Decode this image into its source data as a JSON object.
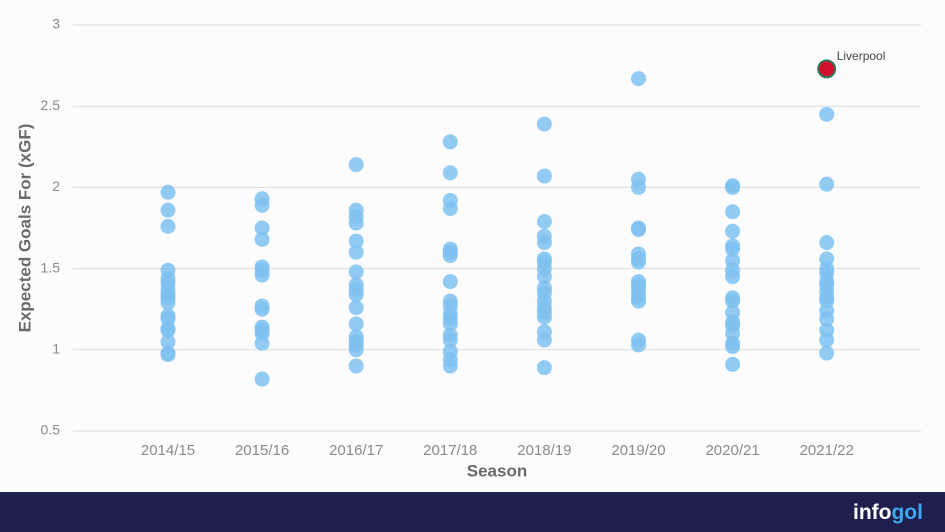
{
  "chart_data": {
    "type": "strip",
    "x_label": "Season",
    "y_label": "Expected Goals For (xGF)",
    "categories": [
      "2014/15",
      "2015/16",
      "2016/17",
      "2017/18",
      "2018/19",
      "2019/20",
      "2020/21",
      "2021/22"
    ],
    "values": [
      [
        1.97,
        1.86,
        1.76,
        1.49,
        1.44,
        1.41,
        1.37,
        1.34,
        1.32,
        1.29,
        1.21,
        1.19,
        1.13,
        1.12,
        1.05,
        0.98,
        0.97
      ],
      [
        1.93,
        1.89,
        1.75,
        1.68,
        1.51,
        1.49,
        1.46,
        1.27,
        1.25,
        1.14,
        1.12,
        1.1,
        1.04,
        0.82
      ],
      [
        2.14,
        1.86,
        1.82,
        1.78,
        1.67,
        1.6,
        1.48,
        1.4,
        1.37,
        1.34,
        1.26,
        1.16,
        1.08,
        1.05,
        1.03,
        1.0,
        0.9
      ],
      [
        2.28,
        2.09,
        1.92,
        1.87,
        1.62,
        1.6,
        1.58,
        1.42,
        1.3,
        1.27,
        1.22,
        1.19,
        1.16,
        1.09,
        1.06,
        0.99,
        0.94,
        0.9
      ],
      [
        2.39,
        2.07,
        1.79,
        1.7,
        1.66,
        1.56,
        1.54,
        1.5,
        1.45,
        1.38,
        1.35,
        1.3,
        1.26,
        1.23,
        1.2,
        1.11,
        1.06,
        0.89
      ],
      [
        2.67,
        2.05,
        2.0,
        1.75,
        1.74,
        1.59,
        1.56,
        1.54,
        1.42,
        1.4,
        1.38,
        1.35,
        1.32,
        1.3,
        1.06,
        1.03
      ],
      [
        2.01,
        2.0,
        1.85,
        1.73,
        1.64,
        1.62,
        1.55,
        1.49,
        1.45,
        1.32,
        1.3,
        1.23,
        1.17,
        1.15,
        1.1,
        1.04,
        1.02,
        0.91
      ],
      [
        2.45,
        2.02,
        1.66,
        1.56,
        1.5,
        1.47,
        1.42,
        1.4,
        1.36,
        1.32,
        1.3,
        1.24,
        1.19,
        1.12,
        1.06,
        0.98
      ]
    ],
    "color": "#7ec1f0",
    "highlight": {
      "label": "Liverpool",
      "category": "2021/22",
      "value": 2.73,
      "color": "#d0102e"
    },
    "ylim": [
      0.5,
      3
    ],
    "yticks": [
      0.5,
      1,
      1.5,
      2,
      2.5,
      3
    ],
    "grid": true
  },
  "footer": {
    "logo": [
      "info",
      "gol"
    ]
  }
}
